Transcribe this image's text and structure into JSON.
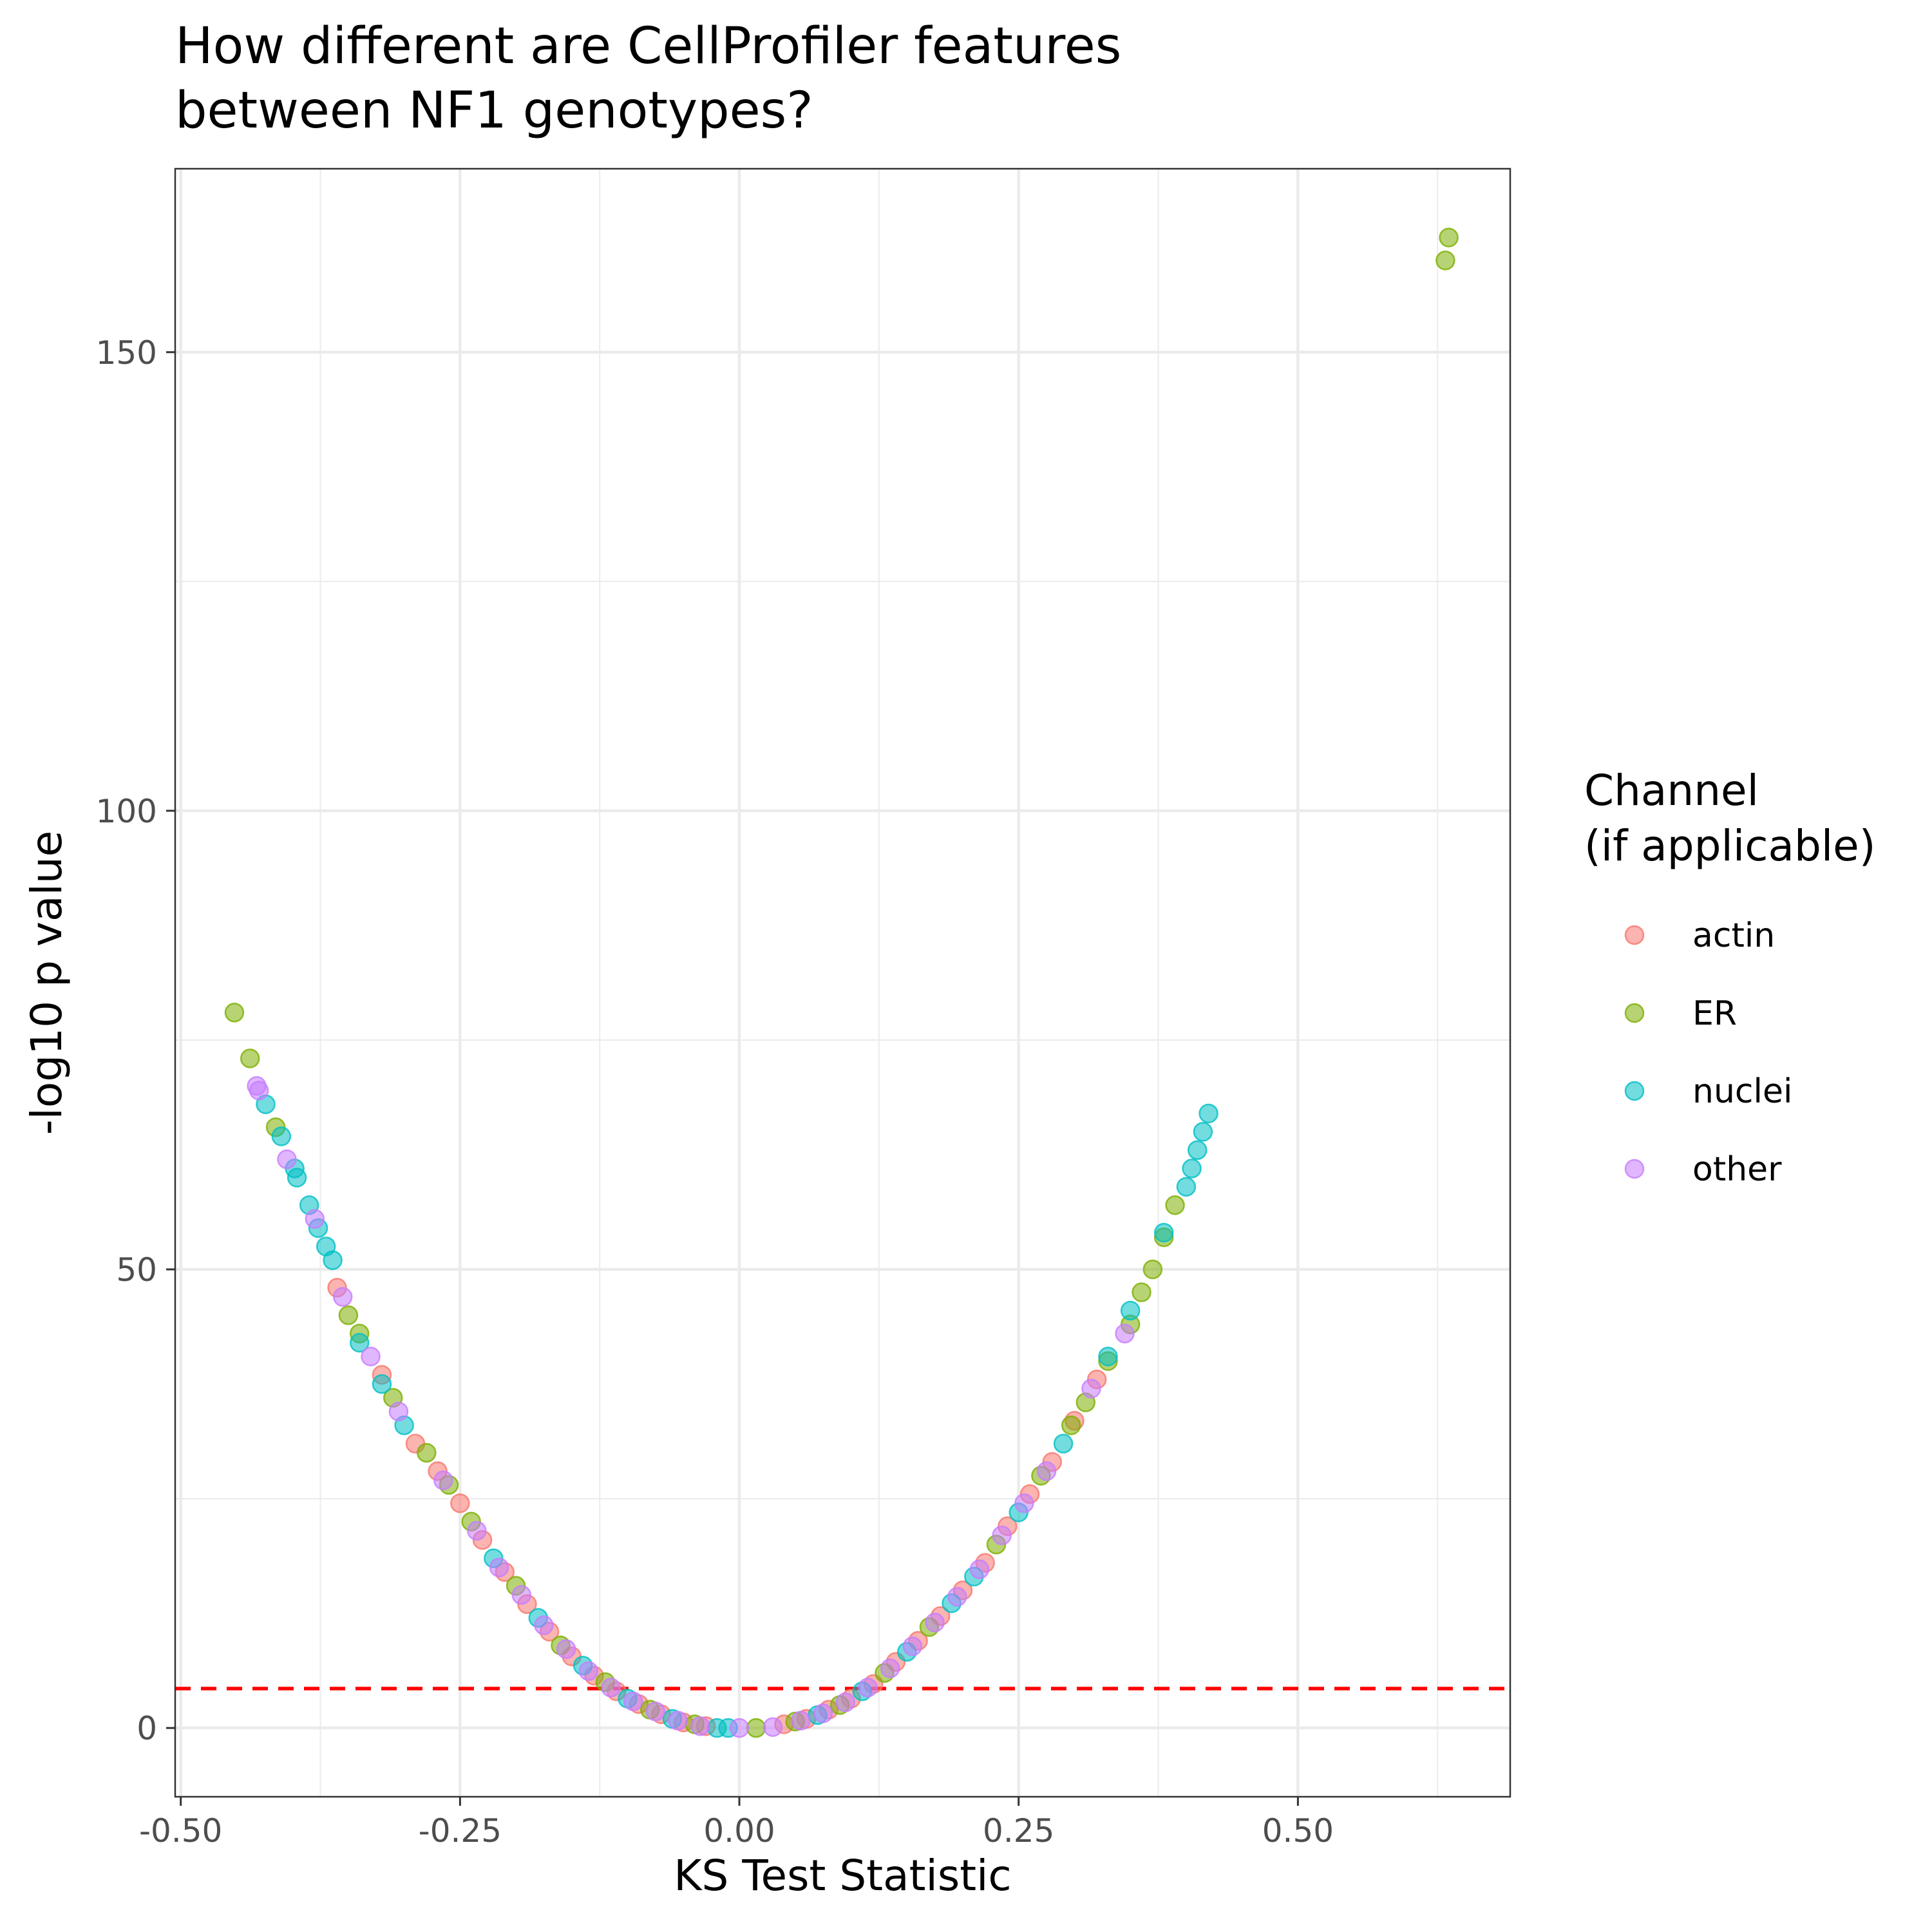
{
  "chart_data": {
    "type": "scatter",
    "title": [
      "How different are CellProfiler features",
      "between NF1 genotypes?"
    ],
    "xlabel": "KS Test Statistic",
    "ylabel": "-log10 p value",
    "xlim": [
      -0.505,
      0.69
    ],
    "ylim": [
      -7.5,
      170
    ],
    "x_ticks": [
      -0.5,
      -0.25,
      0.0,
      0.25,
      0.5
    ],
    "x_tick_labels": [
      "-0.50",
      "-0.25",
      "0.00",
      "0.25",
      "0.50"
    ],
    "y_ticks": [
      0,
      50,
      100,
      150
    ],
    "y_tick_labels": [
      "0",
      "50",
      "100",
      "150"
    ],
    "x_minor_ticks": [
      -0.375,
      -0.125,
      0.125,
      0.375,
      0.625
    ],
    "y_minor_ticks": [
      25,
      75,
      125
    ],
    "grid": true,
    "threshold_line": {
      "y": 4.3,
      "color": "#ff0000",
      "style": "dashed"
    },
    "legend": {
      "title": [
        "Channel",
        "(if applicable)"
      ],
      "position": "right",
      "entries": [
        {
          "label": "actin",
          "color": "#f8766d"
        },
        {
          "label": "ER",
          "color": "#7cae00"
        },
        {
          "label": "nuclei",
          "color": "#00bfc4"
        },
        {
          "label": "other",
          "color": "#c77cff"
        }
      ]
    },
    "series": [
      {
        "name": "actin",
        "color": "#f8766d",
        "points": [
          [
            -0.36,
            48
          ],
          [
            -0.32,
            38.5
          ],
          [
            -0.29,
            31
          ],
          [
            -0.27,
            28
          ],
          [
            -0.25,
            24.5
          ],
          [
            -0.23,
            20.5
          ],
          [
            -0.21,
            17
          ],
          [
            -0.19,
            13.5
          ],
          [
            -0.17,
            10.5
          ],
          [
            -0.15,
            7.8
          ],
          [
            -0.13,
            5.7
          ],
          [
            -0.11,
            4
          ],
          [
            -0.09,
            2.6
          ],
          [
            -0.07,
            1.5
          ],
          [
            -0.05,
            0.6
          ],
          [
            -0.03,
            0.2
          ],
          [
            0.04,
            0.4
          ],
          [
            0.06,
            1.0
          ],
          [
            0.08,
            2.0
          ],
          [
            0.1,
            3.2
          ],
          [
            0.12,
            4.8
          ],
          [
            0.14,
            7.2
          ],
          [
            0.16,
            9.5
          ],
          [
            0.18,
            12.2
          ],
          [
            0.2,
            15
          ],
          [
            0.22,
            18
          ],
          [
            0.24,
            22
          ],
          [
            0.26,
            25.5
          ],
          [
            0.28,
            29
          ],
          [
            0.3,
            33.5
          ],
          [
            0.32,
            38
          ]
        ]
      },
      {
        "name": "ER",
        "color": "#7cae00",
        "points": [
          [
            -0.452,
            78
          ],
          [
            -0.438,
            73
          ],
          [
            -0.415,
            65.5
          ],
          [
            -0.35,
            45
          ],
          [
            -0.34,
            43
          ],
          [
            -0.31,
            36
          ],
          [
            -0.28,
            30
          ],
          [
            -0.26,
            26.5
          ],
          [
            -0.24,
            22.5
          ],
          [
            -0.2,
            15.5
          ],
          [
            -0.16,
            9
          ],
          [
            -0.12,
            5
          ],
          [
            -0.08,
            2
          ],
          [
            -0.04,
            0.4
          ],
          [
            0.015,
            0
          ],
          [
            0.05,
            0.7
          ],
          [
            0.09,
            2.5
          ],
          [
            0.13,
            6
          ],
          [
            0.17,
            11
          ],
          [
            0.23,
            20
          ],
          [
            0.27,
            27.5
          ],
          [
            0.297,
            33
          ],
          [
            0.31,
            35.5
          ],
          [
            0.33,
            40
          ],
          [
            0.35,
            44
          ],
          [
            0.36,
            47.5
          ],
          [
            0.37,
            50
          ],
          [
            0.38,
            53.5
          ],
          [
            0.39,
            57
          ],
          [
            0.632,
            160
          ],
          [
            0.635,
            162.5
          ]
        ]
      },
      {
        "name": "nuclei",
        "color": "#00bfc4",
        "points": [
          [
            -0.424,
            68
          ],
          [
            -0.41,
            64.5
          ],
          [
            -0.398,
            61
          ],
          [
            -0.396,
            60
          ],
          [
            -0.385,
            57
          ],
          [
            -0.377,
            54.5
          ],
          [
            -0.37,
            52.5
          ],
          [
            -0.364,
            51
          ],
          [
            -0.34,
            42
          ],
          [
            -0.32,
            37.5
          ],
          [
            -0.3,
            33
          ],
          [
            -0.22,
            18.5
          ],
          [
            -0.18,
            12
          ],
          [
            -0.14,
            6.8
          ],
          [
            -0.1,
            3.2
          ],
          [
            -0.06,
            1
          ],
          [
            -0.02,
            0
          ],
          [
            -0.01,
            0
          ],
          [
            0.07,
            1.4
          ],
          [
            0.11,
            4
          ],
          [
            0.15,
            8.3
          ],
          [
            0.19,
            13.6
          ],
          [
            0.21,
            16.5
          ],
          [
            0.25,
            23.5
          ],
          [
            0.29,
            31
          ],
          [
            0.33,
            40.5
          ],
          [
            0.35,
            45.5
          ],
          [
            0.38,
            54
          ],
          [
            0.4,
            59
          ],
          [
            0.405,
            61
          ],
          [
            0.41,
            63
          ],
          [
            0.415,
            65
          ],
          [
            0.42,
            67
          ]
        ]
      },
      {
        "name": "other",
        "color": "#c77cff",
        "points": [
          [
            -0.432,
            70
          ],
          [
            -0.43,
            69.5
          ],
          [
            -0.405,
            62
          ],
          [
            -0.38,
            55.5
          ],
          [
            -0.355,
            47
          ],
          [
            -0.33,
            40.5
          ],
          [
            -0.305,
            34.5
          ],
          [
            -0.265,
            27
          ],
          [
            -0.235,
            21.5
          ],
          [
            -0.215,
            17.5
          ],
          [
            -0.195,
            14.5
          ],
          [
            -0.175,
            11.2
          ],
          [
            -0.155,
            8.6
          ],
          [
            -0.135,
            6.2
          ],
          [
            -0.115,
            4.4
          ],
          [
            -0.095,
            2.9
          ],
          [
            -0.075,
            1.8
          ],
          [
            -0.055,
            0.8
          ],
          [
            -0.035,
            0.2
          ],
          [
            0.0,
            0
          ],
          [
            0.03,
            0.1
          ],
          [
            0.055,
            0.8
          ],
          [
            0.075,
            1.6
          ],
          [
            0.095,
            2.8
          ],
          [
            0.115,
            4.4
          ],
          [
            0.135,
            6.5
          ],
          [
            0.155,
            8.9
          ],
          [
            0.175,
            11.5
          ],
          [
            0.195,
            14.3
          ],
          [
            0.215,
            17.3
          ],
          [
            0.235,
            21
          ],
          [
            0.255,
            24.5
          ],
          [
            0.275,
            28
          ],
          [
            0.315,
            37
          ],
          [
            0.345,
            43
          ]
        ]
      }
    ]
  }
}
